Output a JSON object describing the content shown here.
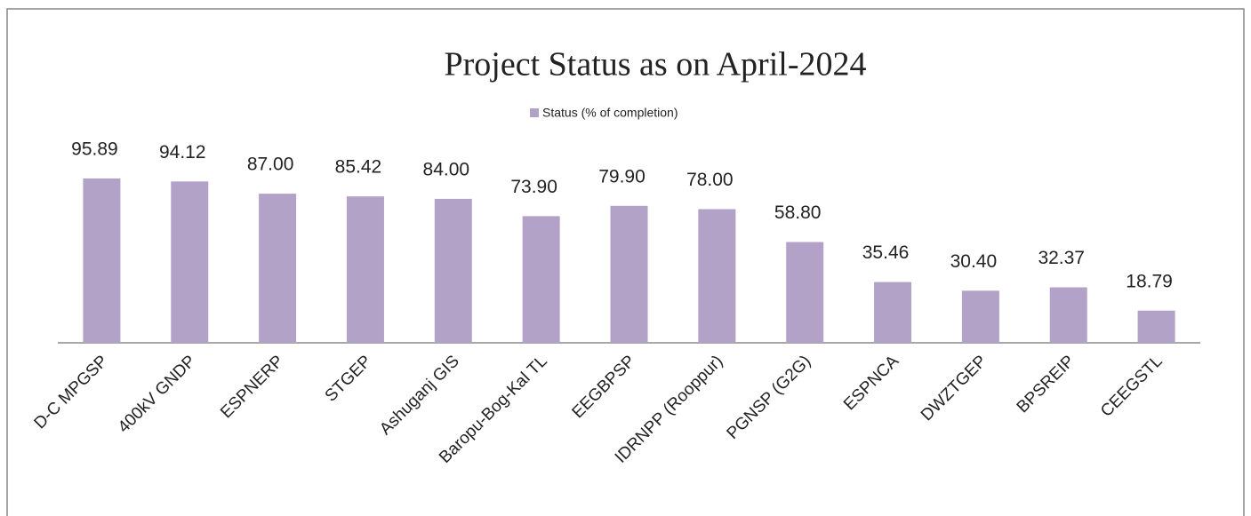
{
  "chart_data": {
    "type": "bar",
    "title": "Project Status as on April-2024",
    "categories": [
      "D-C MPGSP",
      "400kV GNDP",
      "ESPNERP",
      "STGEP",
      "Ashuganj  GIS",
      "Baropu-Bog-Kal TL",
      "EEGBPSP",
      "IDRNPP (Rooppur)",
      "PGNSP (G2G)",
      "ESPNCA",
      "DWZTGEP",
      "BPSREIP",
      "CEEGSTL"
    ],
    "series": [
      {
        "name": "Status (% of completion)",
        "color": "#b3a2c7",
        "values": [
          95.89,
          94.12,
          87,
          85.42,
          84,
          73.9,
          79.9,
          78,
          58.8,
          35.46,
          30.4,
          32.37,
          18.79
        ],
        "value_labels": [
          "95.89",
          "94.12",
          "87.00",
          "85.42",
          "84.00",
          "73.90",
          "79.90",
          "78.00",
          "58.80",
          "35.46",
          "30.40",
          "32.37",
          "18.79"
        ]
      }
    ],
    "ylim": [
      0,
      100
    ],
    "legend": "top"
  }
}
